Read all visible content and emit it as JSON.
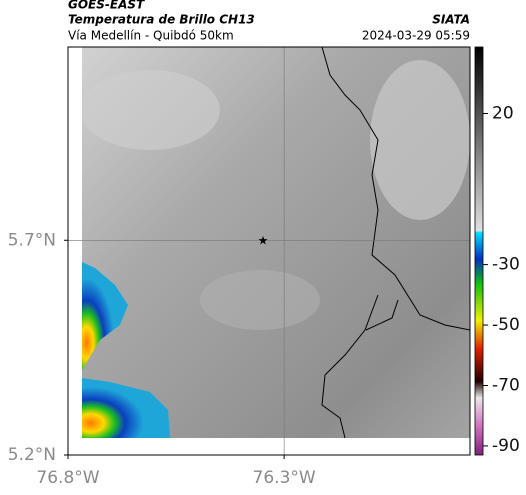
{
  "header": {
    "title": "GOES-EAST",
    "subtitle": "Temperatura de Brillo CH13",
    "location": "Vía Medellín - Quibdó 50km",
    "source": "SIATA",
    "timestamp": "2024-03-29 05:59"
  },
  "map": {
    "lat_lim": [
      5.2,
      6.15
    ],
    "lon_lim": [
      -76.8,
      -75.87
    ],
    "lat_ticks": [
      {
        "value": 5.7,
        "label": "5.7°N"
      },
      {
        "value": 5.2,
        "label": "5.2°N"
      }
    ],
    "lon_ticks": [
      {
        "value": -76.8,
        "label": "76.8°W"
      },
      {
        "value": -76.3,
        "label": "76.3°W"
      }
    ],
    "grid": true
  },
  "colorbar": {
    "lim": [
      -93,
      42
    ],
    "ticks": [
      20,
      -30,
      -50,
      -70,
      -90
    ]
  }
}
